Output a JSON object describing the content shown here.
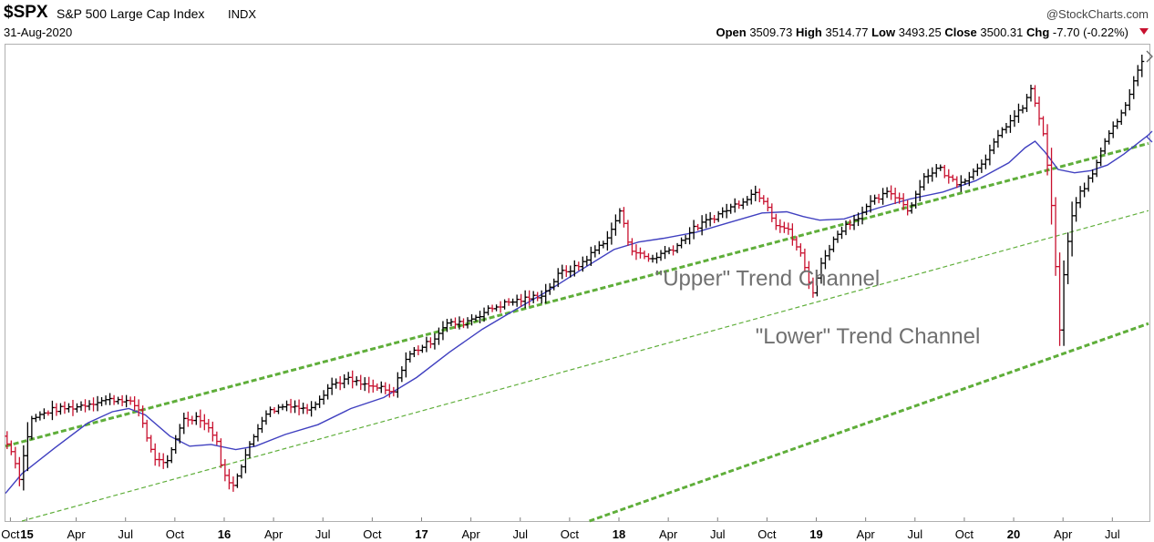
{
  "header": {
    "symbol": "$SPX",
    "name": "S&P 500 Large Cap Index",
    "type": "INDX",
    "date": "31-Aug-2020",
    "credit": "@StockCharts.com",
    "open_label": "Open",
    "open": "3509.73",
    "high_label": "High",
    "high": "3514.77",
    "low_label": "Low",
    "low": "3493.25",
    "close_label": "Close",
    "close": "3500.31",
    "chg_label": "Chg",
    "chg": "-7.70 (-0.22%)"
  },
  "colors": {
    "up_bar": "#000000",
    "down_bar": "#c8102e",
    "moving_average": "#4040c0",
    "trend_line": "#5fae3a",
    "frame": "#b0b0b0"
  },
  "chart_data": {
    "type": "ohlc",
    "x_ticks": [
      {
        "label": "Oct",
        "bold": false,
        "t": 0.3
      },
      {
        "label": "15",
        "bold": true,
        "t": 1.3
      },
      {
        "label": "Apr",
        "bold": false,
        "t": 4.3
      },
      {
        "label": "Jul",
        "bold": false,
        "t": 7.3
      },
      {
        "label": "Oct",
        "bold": false,
        "t": 10.3
      },
      {
        "label": "16",
        "bold": true,
        "t": 13.3
      },
      {
        "label": "Apr",
        "bold": false,
        "t": 16.3
      },
      {
        "label": "Jul",
        "bold": false,
        "t": 19.3
      },
      {
        "label": "Oct",
        "bold": false,
        "t": 22.3
      },
      {
        "label": "17",
        "bold": true,
        "t": 25.3
      },
      {
        "label": "Apr",
        "bold": false,
        "t": 28.3
      },
      {
        "label": "Jul",
        "bold": false,
        "t": 31.3
      },
      {
        "label": "Oct",
        "bold": false,
        "t": 34.3
      },
      {
        "label": "18",
        "bold": true,
        "t": 37.3
      },
      {
        "label": "Apr",
        "bold": false,
        "t": 40.3
      },
      {
        "label": "Jul",
        "bold": false,
        "t": 43.3
      },
      {
        "label": "Oct",
        "bold": false,
        "t": 46.3
      },
      {
        "label": "19",
        "bold": true,
        "t": 49.3
      },
      {
        "label": "Apr",
        "bold": false,
        "t": 52.3
      },
      {
        "label": "Jul",
        "bold": false,
        "t": 55.3
      },
      {
        "label": "Oct",
        "bold": false,
        "t": 58.3
      },
      {
        "label": "20",
        "bold": true,
        "t": 61.3
      },
      {
        "label": "Apr",
        "bold": false,
        "t": 64.3
      },
      {
        "label": "Jul",
        "bold": false,
        "t": 67.3
      }
    ],
    "x_range": [
      0,
      69.5
    ],
    "y_scale": "log",
    "y_range": [
      1750,
      3600
    ],
    "price_path": [
      [
        0,
        1990
      ],
      [
        0.6,
        1950
      ],
      [
        1.1,
        1870
      ],
      [
        1.8,
        2040
      ],
      [
        3,
        2070
      ],
      [
        4.5,
        2080
      ],
      [
        6,
        2100
      ],
      [
        7.3,
        2105
      ],
      [
        8.3,
        2080
      ],
      [
        9.2,
        1930
      ],
      [
        10,
        1900
      ],
      [
        11,
        2040
      ],
      [
        12,
        2050
      ],
      [
        13,
        1990
      ],
      [
        13.5,
        1880
      ],
      [
        14,
        1840
      ],
      [
        15,
        1950
      ],
      [
        16,
        2060
      ],
      [
        17.5,
        2090
      ],
      [
        18.5,
        2070
      ],
      [
        19.2,
        2100
      ],
      [
        20,
        2150
      ],
      [
        21,
        2170
      ],
      [
        22,
        2150
      ],
      [
        23,
        2140
      ],
      [
        23.8,
        2120
      ],
      [
        24.5,
        2230
      ],
      [
        25,
        2260
      ],
      [
        26.2,
        2300
      ],
      [
        27,
        2360
      ],
      [
        28,
        2360
      ],
      [
        29,
        2390
      ],
      [
        30,
        2420
      ],
      [
        31,
        2440
      ],
      [
        32,
        2450
      ],
      [
        33,
        2470
      ],
      [
        33.5,
        2510
      ],
      [
        34,
        2550
      ],
      [
        35,
        2570
      ],
      [
        36,
        2630
      ],
      [
        37,
        2700
      ],
      [
        37.6,
        2800
      ],
      [
        38.2,
        2650
      ],
      [
        38.8,
        2620
      ],
      [
        39.5,
        2600
      ],
      [
        40,
        2620
      ],
      [
        41,
        2650
      ],
      [
        42,
        2720
      ],
      [
        43,
        2760
      ],
      [
        44,
        2800
      ],
      [
        45,
        2840
      ],
      [
        45.8,
        2880
      ],
      [
        46.5,
        2840
      ],
      [
        47,
        2750
      ],
      [
        47.8,
        2720
      ],
      [
        48.6,
        2620
      ],
      [
        49.3,
        2470
      ],
      [
        50,
        2610
      ],
      [
        51,
        2720
      ],
      [
        52,
        2770
      ],
      [
        53,
        2840
      ],
      [
        54,
        2880
      ],
      [
        54.6,
        2850
      ],
      [
        55.2,
        2800
      ],
      [
        56,
        2940
      ],
      [
        57,
        2990
      ],
      [
        57.6,
        2940
      ],
      [
        58.2,
        2920
      ],
      [
        59,
        2960
      ],
      [
        60,
        3050
      ],
      [
        61,
        3180
      ],
      [
        62,
        3260
      ],
      [
        62.6,
        3360
      ],
      [
        63,
        3260
      ],
      [
        63.5,
        3080
      ],
      [
        64,
        2700
      ],
      [
        64.3,
        2300
      ],
      [
        64.6,
        2540
      ],
      [
        65,
        2750
      ],
      [
        65.6,
        2880
      ],
      [
        66.3,
        2950
      ],
      [
        67,
        3100
      ],
      [
        67.5,
        3180
      ],
      [
        68,
        3220
      ],
      [
        68.6,
        3350
      ],
      [
        69.2,
        3500
      ]
    ],
    "moving_average": [
      [
        0,
        1825
      ],
      [
        1,
        1880
      ],
      [
        3,
        1955
      ],
      [
        5,
        2030
      ],
      [
        6.5,
        2065
      ],
      [
        7.5,
        2075
      ],
      [
        8.5,
        2055
      ],
      [
        10,
        1990
      ],
      [
        11.2,
        1960
      ],
      [
        12.5,
        1965
      ],
      [
        14,
        1950
      ],
      [
        15.2,
        1960
      ],
      [
        17,
        1995
      ],
      [
        19,
        2025
      ],
      [
        21,
        2075
      ],
      [
        23,
        2110
      ],
      [
        25,
        2175
      ],
      [
        27,
        2260
      ],
      [
        29,
        2340
      ],
      [
        31,
        2410
      ],
      [
        33,
        2480
      ],
      [
        35,
        2560
      ],
      [
        37,
        2640
      ],
      [
        38.5,
        2670
      ],
      [
        40,
        2685
      ],
      [
        42,
        2710
      ],
      [
        44,
        2750
      ],
      [
        46,
        2790
      ],
      [
        47.5,
        2795
      ],
      [
        48.5,
        2775
      ],
      [
        49.5,
        2760
      ],
      [
        51,
        2765
      ],
      [
        53,
        2810
      ],
      [
        55,
        2850
      ],
      [
        57,
        2880
      ],
      [
        59,
        2930
      ],
      [
        61,
        3010
      ],
      [
        62,
        3080
      ],
      [
        62.6,
        3110
      ],
      [
        63.2,
        3060
      ],
      [
        64,
        2980
      ],
      [
        65,
        2965
      ],
      [
        66,
        2975
      ],
      [
        67,
        3000
      ],
      [
        68,
        3050
      ],
      [
        69,
        3110
      ],
      [
        69.5,
        3140
      ]
    ],
    "trend_lines": [
      {
        "name": "upper",
        "width": 3,
        "points": [
          [
            0,
            1960
          ],
          [
            69.5,
            3100
          ]
        ]
      },
      {
        "name": "mid",
        "width": 1.2,
        "points": [
          [
            1,
            1750
          ],
          [
            69.5,
            2800
          ]
        ]
      },
      {
        "name": "lower",
        "width": 3,
        "points": [
          [
            35.5,
            1750
          ],
          [
            69.5,
            2360
          ]
        ]
      }
    ],
    "annotations": [
      {
        "text": "\"Upper\" Trend    Channel",
        "x": 39.5,
        "y": 2500
      },
      {
        "text": "\"Lower\" Trend Channel",
        "x": 45.6,
        "y": 2290
      }
    ]
  }
}
